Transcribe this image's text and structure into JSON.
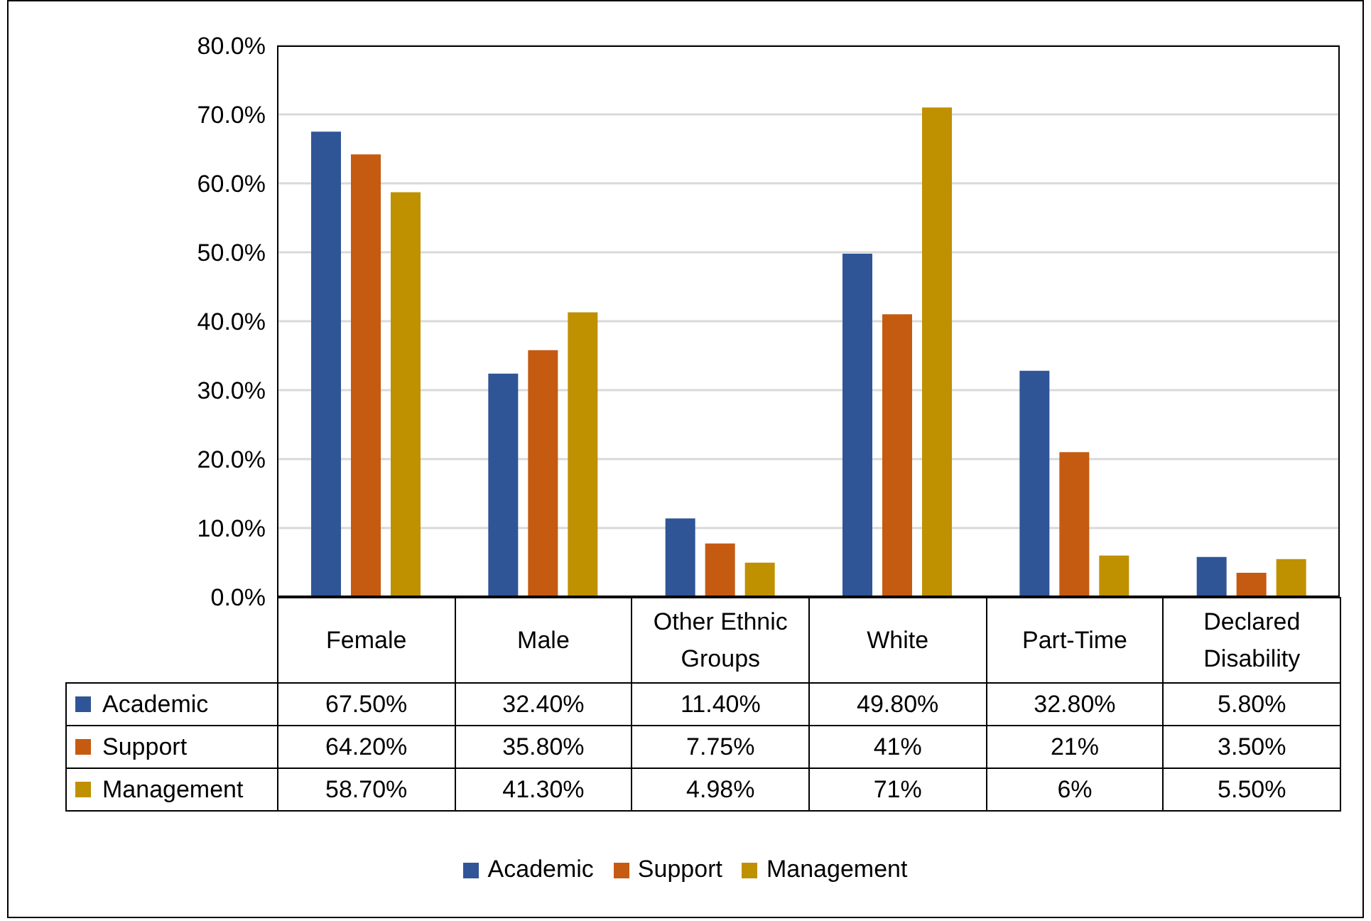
{
  "chart_data": {
    "type": "bar",
    "categories": [
      "Female",
      "Male",
      "Other Ethnic Groups",
      "White",
      "Part-Time",
      "Declared Disability"
    ],
    "series": [
      {
        "name": "Academic",
        "color": "#2f5597",
        "values": [
          67.5,
          32.4,
          11.4,
          49.8,
          32.8,
          5.8
        ],
        "value_labels": [
          "67.50%",
          "32.40%",
          "11.40%",
          "49.80%",
          "32.80%",
          "5.80%"
        ]
      },
      {
        "name": "Support",
        "color": "#c55a11",
        "values": [
          64.2,
          35.8,
          7.75,
          41,
          21,
          3.5
        ],
        "value_labels": [
          "64.20%",
          "35.80%",
          "7.75%",
          "41%",
          "21%",
          "3.50%"
        ]
      },
      {
        "name": "Management",
        "color": "#bf9000",
        "values": [
          58.7,
          41.3,
          4.98,
          71,
          6,
          5.5
        ],
        "value_labels": [
          "58.70%",
          "41.30%",
          "4.98%",
          "71%",
          "6%",
          "5.50%"
        ]
      }
    ],
    "ylim": [
      0,
      80
    ],
    "yticks": [
      {
        "value": 0,
        "label": "0.0%"
      },
      {
        "value": 10,
        "label": "10.0%"
      },
      {
        "value": 20,
        "label": "20.0%"
      },
      {
        "value": 30,
        "label": "30.0%"
      },
      {
        "value": 40,
        "label": "40.0%"
      },
      {
        "value": 50,
        "label": "50.0%"
      },
      {
        "value": 60,
        "label": "60.0%"
      },
      {
        "value": 70,
        "label": "70.0%"
      },
      {
        "value": 80,
        "label": "80.0%"
      }
    ],
    "grid": "y",
    "legend": "bottom"
  }
}
